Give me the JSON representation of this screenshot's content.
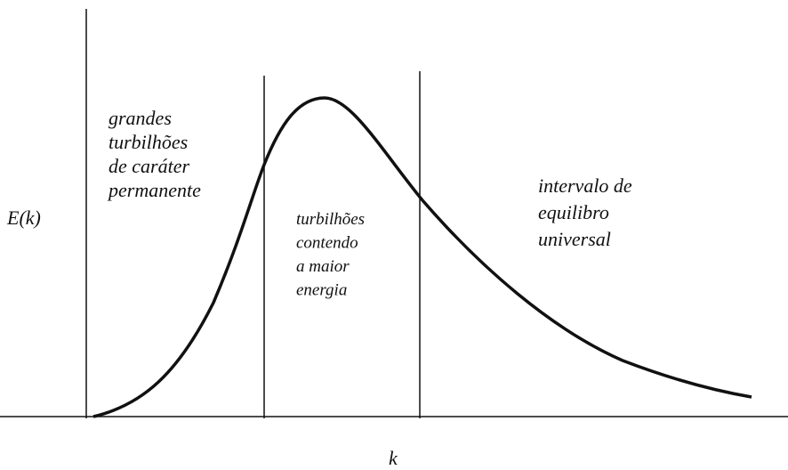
{
  "axes": {
    "y_label": "E(k)",
    "x_label": "k"
  },
  "regions": [
    {
      "lines": [
        "grandes",
        "turbilhões",
        "de caráter",
        "permanente"
      ]
    },
    {
      "lines": [
        "turbilhões",
        "contendo",
        "a maior",
        "energia"
      ]
    },
    {
      "lines": [
        "intervalo de",
        "equilibro",
        "universal"
      ]
    }
  ]
}
